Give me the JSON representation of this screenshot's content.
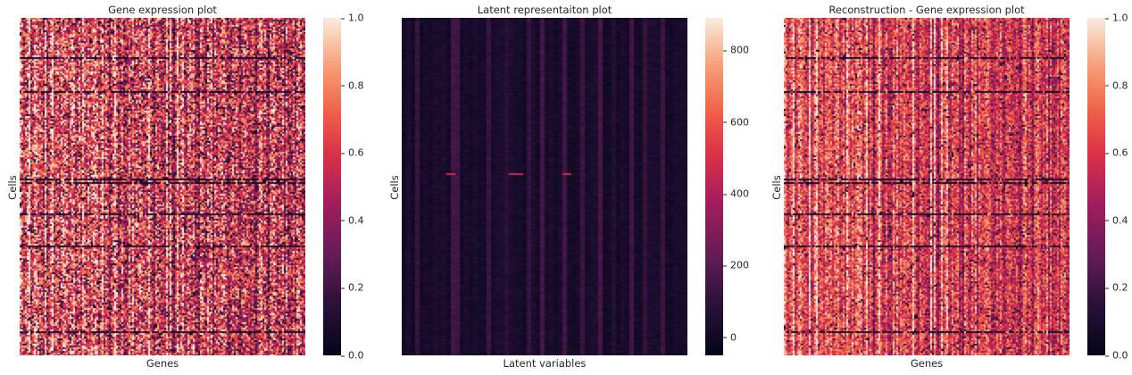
{
  "chart_data": [
    {
      "type": "heatmap",
      "title": "Gene expression plot",
      "xlabel": "Genes",
      "ylabel": "Cells",
      "colormap": "rocket",
      "vmin": 0.0,
      "vmax": 1.0,
      "colorbar_ticks": [
        "0.0",
        "0.2",
        "0.4",
        "0.6",
        "0.8",
        "1.0"
      ],
      "colorbar_tick_values": [
        0.0,
        0.2,
        0.4,
        0.6,
        0.8,
        1.0
      ]
    },
    {
      "type": "heatmap",
      "title": "Latent representaiton plot",
      "xlabel": "Latent variables",
      "ylabel": "Cells",
      "colormap": "rocket",
      "vmin": -50,
      "vmax": 890,
      "colorbar_ticks": [
        "0",
        "200",
        "400",
        "600",
        "800"
      ],
      "colorbar_tick_values": [
        0,
        200,
        400,
        600,
        800
      ]
    },
    {
      "type": "heatmap",
      "title": "Reconstruction - Gene expression plot",
      "xlabel": "Genes",
      "ylabel": "Cells",
      "colormap": "rocket",
      "vmin": 0.0,
      "vmax": 1.0,
      "colorbar_ticks": [
        "0.0",
        "0.2",
        "0.4",
        "0.6",
        "0.8",
        "1.0"
      ],
      "colorbar_tick_values": [
        0.0,
        0.2,
        0.4,
        0.6,
        0.8,
        1.0
      ]
    }
  ]
}
